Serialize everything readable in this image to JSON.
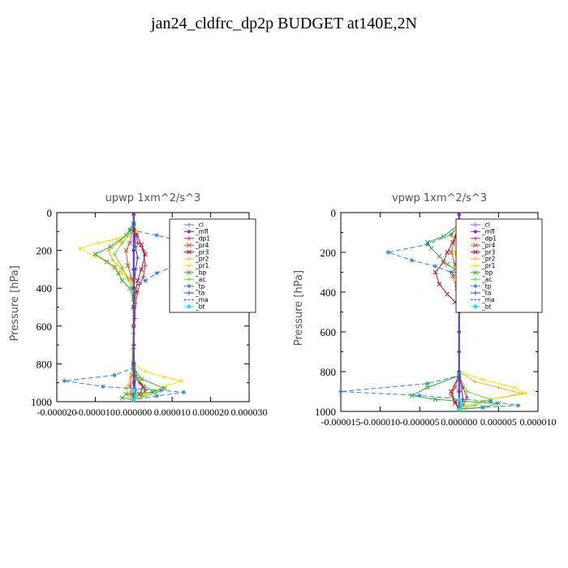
{
  "title": "jan24_cldfrc_dp2p  BUDGET at140E,2N",
  "chart_data": [
    {
      "type": "line",
      "title": "upwp   1xm^2/s^3",
      "ylabel": "Pressure [hPa]",
      "xlim": [
        -2e-05,
        3e-05
      ],
      "ylim": [
        1000,
        0
      ],
      "yticks": [
        0,
        200,
        400,
        600,
        800,
        1000
      ],
      "xticks": [
        "-0.000020",
        "-0.000010",
        "0.000000",
        "0.000010",
        "0.000020",
        "0.000030"
      ],
      "legend_position": "top-right",
      "series": [
        {
          "name": "_cl",
          "color": "#9a4fd6",
          "marker": "plus",
          "dash": "",
          "x": [
            0,
            0,
            0,
            0,
            0,
            0,
            0,
            0,
            0,
            0,
            0
          ],
          "y": [
            10,
            100,
            200,
            300,
            400,
            500,
            600,
            700,
            800,
            900,
            990
          ]
        },
        {
          "name": "_mfl",
          "color": "#8a2be2",
          "marker": "dot",
          "dash": "",
          "x": [
            0,
            0,
            0,
            0,
            0,
            0,
            0,
            0,
            0,
            0,
            0
          ],
          "y": [
            10,
            100,
            200,
            300,
            400,
            500,
            600,
            700,
            800,
            900,
            990
          ]
        },
        {
          "name": "_dp1",
          "color": "#d62050",
          "marker": "plus",
          "dash": "",
          "x": [
            0,
            5e-07,
            1e-06,
            2.5e-06,
            3e-06,
            2.5e-06,
            1.5e-06,
            1e-06,
            5e-07,
            3e-07,
            0,
            0,
            0,
            5e-07,
            1.5e-06,
            3e-06,
            2e-06,
            0
          ],
          "y": [
            60,
            110,
            160,
            200,
            280,
            340,
            380,
            420,
            480,
            560,
            640,
            720,
            800,
            860,
            900,
            940,
            970,
            990
          ]
        },
        {
          "name": "_pr4",
          "color": "#e0501a",
          "marker": "cross",
          "dash": "",
          "x": [
            0,
            -1e-06,
            -2e-06,
            -1.5e-06,
            -5e-07,
            0,
            0,
            -5e-07,
            -1e-06,
            -5e-07,
            0
          ],
          "y": [
            60,
            160,
            200,
            280,
            350,
            450,
            600,
            860,
            920,
            960,
            990
          ]
        },
        {
          "name": "_pr3",
          "color": "#b01040",
          "marker": "cross",
          "dash": "",
          "x": [
            0,
            8e-07,
            2e-06,
            3e-06,
            2e-06,
            1e-06,
            5e-07,
            0,
            0,
            1e-06,
            2.5e-06,
            1.5e-06,
            0
          ],
          "y": [
            60,
            120,
            170,
            220,
            300,
            360,
            420,
            500,
            800,
            880,
            920,
            960,
            990
          ]
        },
        {
          "name": "_pr2",
          "color": "#f0b030",
          "marker": "plus",
          "dash": "",
          "x": [
            0,
            -1e-06,
            -3.5e-06,
            -6.5e-06,
            -5.5e-06,
            -3e-06,
            -1e-06,
            0,
            0,
            -8e-07,
            -2e-06,
            -1e-06,
            0
          ],
          "y": [
            60,
            100,
            150,
            200,
            250,
            300,
            350,
            400,
            800,
            880,
            930,
            970,
            990
          ]
        },
        {
          "name": "_pr1",
          "color": "#ffd700",
          "marker": "plus",
          "dash": "",
          "x": [
            0,
            1e-06,
            -4.5e-06,
            -9e-06,
            -1.4e-05,
            -1e-05,
            -5e-06,
            -3e-06,
            0,
            0,
            3e-06,
            8e-06,
            1.25e-05,
            8e-06,
            3e-06,
            0
          ],
          "y": [
            60,
            100,
            140,
            160,
            190,
            230,
            280,
            320,
            380,
            800,
            840,
            870,
            890,
            920,
            960,
            990
          ]
        },
        {
          "name": "_bp",
          "color": "#33aa33",
          "marker": "cross",
          "dash": "",
          "x": [
            0,
            -2e-06,
            -6e-06,
            -1e-05,
            -7e-06,
            -5e-06,
            -4e-06,
            -3e-06,
            -1e-06,
            0,
            0,
            2e-06,
            8e-06,
            5e-06,
            -2e-06,
            -3e-06,
            0
          ],
          "y": [
            60,
            120,
            180,
            220,
            260,
            290,
            320,
            360,
            400,
            460,
            820,
            880,
            930,
            950,
            960,
            980,
            990
          ]
        },
        {
          "name": "_ac",
          "color": "#66dd22",
          "marker": "plus",
          "dash": "",
          "x": [
            0,
            -1e-06,
            -3e-06,
            -5e-06,
            -3e-06,
            -1.5e-06,
            0,
            0,
            1e-06,
            3e-06,
            6e-06,
            3e-06,
            0
          ],
          "y": [
            60,
            110,
            160,
            220,
            290,
            350,
            420,
            820,
            880,
            920,
            950,
            970,
            990
          ]
        },
        {
          "name": "_tp",
          "color": "#3388cc",
          "marker": "star",
          "dash": "6,3",
          "x": [
            0,
            -1e-06,
            6e-06,
            1.2e-05,
            2e-05,
            1.8e-05,
            1.1e-05,
            6e-06,
            3e-06,
            0,
            0,
            -5e-06,
            -1.8e-05,
            -8e-06,
            7e-06,
            1.3e-05,
            6e-06,
            0
          ],
          "y": [
            60,
            90,
            120,
            150,
            185,
            230,
            280,
            320,
            360,
            400,
            820,
            860,
            890,
            920,
            940,
            950,
            970,
            990
          ]
        },
        {
          "name": "_ta",
          "color": "#1f3fd0",
          "marker": "plus",
          "dash": "",
          "x": [
            0,
            5e-07,
            1e-06,
            5e-07,
            0,
            0,
            5e-07,
            0
          ],
          "y": [
            60,
            180,
            240,
            300,
            400,
            800,
            940,
            990
          ]
        },
        {
          "name": "_ma",
          "color": "#2255aa",
          "marker": "none",
          "dash": "4,2",
          "x": [
            0,
            0,
            0,
            0,
            0,
            0,
            0,
            0,
            0,
            0,
            0
          ],
          "y": [
            10,
            100,
            200,
            300,
            400,
            500,
            600,
            700,
            800,
            900,
            990
          ]
        },
        {
          "name": "_bt",
          "color": "#22ddee",
          "marker": "diamond",
          "dash": "",
          "x": [
            0,
            5e-07,
            0
          ],
          "y": [
            940,
            970,
            990
          ]
        }
      ]
    },
    {
      "type": "line",
      "title": "vpwp   1xm^2/s^3",
      "ylabel": "Pressure [hPa]",
      "xlim": [
        -1.5e-05,
        1e-05
      ],
      "ylim": [
        1000,
        0
      ],
      "yticks": [
        0,
        200,
        400,
        600,
        800,
        1000
      ],
      "xticks": [
        "-0.000015",
        "-0.000010",
        "-0.000005",
        "0.000000",
        "0.000005",
        "0.000010"
      ],
      "legend_position": "top-right",
      "series": [
        {
          "name": "_cl",
          "color": "#9a4fd6",
          "marker": "plus",
          "dash": "",
          "x": [
            0,
            0,
            0,
            0,
            0,
            0,
            0,
            0,
            0,
            0,
            0
          ],
          "y": [
            10,
            100,
            200,
            300,
            400,
            500,
            600,
            700,
            800,
            900,
            990
          ]
        },
        {
          "name": "_mfl",
          "color": "#8a2be2",
          "marker": "dot",
          "dash": "",
          "x": [
            0,
            0,
            0,
            0,
            0,
            0,
            0,
            0,
            0,
            0,
            0
          ],
          "y": [
            10,
            100,
            200,
            300,
            400,
            500,
            600,
            700,
            800,
            900,
            990
          ]
        },
        {
          "name": "_dp1",
          "color": "#d62050",
          "marker": "plus",
          "dash": "",
          "x": [
            0,
            5e-07,
            8e-07,
            4e-07,
            6e-07,
            2e-07,
            0,
            0,
            5e-07,
            1e-06,
            5e-07,
            0
          ],
          "y": [
            60,
            130,
            180,
            220,
            290,
            350,
            420,
            820,
            880,
            930,
            970,
            990
          ]
        },
        {
          "name": "_pr4",
          "color": "#e0501a",
          "marker": "cross",
          "dash": "",
          "x": [
            0,
            -5e-07,
            -1e-06,
            -5e-07,
            -8e-07,
            -3e-07,
            0,
            0,
            -5e-07,
            -1e-06,
            -5e-07,
            0
          ],
          "y": [
            60,
            130,
            200,
            260,
            320,
            380,
            440,
            820,
            880,
            920,
            960,
            990
          ]
        },
        {
          "name": "_pr3",
          "color": "#b01040",
          "marker": "cross",
          "dash": "",
          "x": [
            0,
            -8e-07,
            -1.5e-06,
            -2e-06,
            -3e-06,
            -2.5e-06,
            -1.5e-06,
            -5e-07,
            0,
            0,
            -1e-06,
            -5e-07,
            0
          ],
          "y": [
            60,
            150,
            200,
            250,
            300,
            360,
            410,
            450,
            480,
            820,
            900,
            950,
            990
          ]
        },
        {
          "name": "_pr2",
          "color": "#f0b030",
          "marker": "plus",
          "dash": "",
          "x": [
            0,
            5e-07,
            -5e-07,
            0,
            0,
            2e-06,
            5e-06,
            8e-06,
            4e-06,
            1e-06,
            0
          ],
          "y": [
            60,
            150,
            200,
            250,
            800,
            850,
            880,
            910,
            940,
            970,
            990
          ]
        },
        {
          "name": "_pr1",
          "color": "#ffd700",
          "marker": "plus",
          "dash": "",
          "x": [
            0,
            -1e-06,
            5e-07,
            -5e-07,
            0,
            0,
            3e-06,
            7e-06,
            8.5e-06,
            4e-06,
            1e-06,
            0
          ],
          "y": [
            60,
            120,
            160,
            210,
            260,
            800,
            840,
            880,
            910,
            940,
            970,
            990
          ]
        },
        {
          "name": "_bp",
          "color": "#33aa33",
          "marker": "cross",
          "dash": "",
          "x": [
            0,
            -2e-06,
            -4e-06,
            -3.5e-06,
            -2.5e-06,
            -1.5e-06,
            0,
            0,
            -4e-06,
            -6e-06,
            -3e-06,
            5e-06,
            3e-06,
            0
          ],
          "y": [
            60,
            120,
            150,
            180,
            220,
            260,
            300,
            820,
            880,
            920,
            940,
            960,
            980,
            990
          ]
        },
        {
          "name": "_ac",
          "color": "#66dd22",
          "marker": "plus",
          "dash": "",
          "x": [
            0,
            1e-06,
            2e-06,
            3e-06,
            3.5e-06,
            2.5e-06,
            1.5e-06,
            5e-07,
            0,
            0,
            1e-06,
            4e-06,
            2e-06,
            0
          ],
          "y": [
            60,
            150,
            200,
            250,
            300,
            350,
            400,
            440,
            480,
            820,
            900,
            940,
            970,
            990
          ]
        },
        {
          "name": "_tp",
          "color": "#3388cc",
          "marker": "star",
          "dash": "6,3",
          "x": [
            0,
            -1e-06,
            -4e-06,
            -9e-06,
            -6e-06,
            -3e-06,
            -1e-06,
            0,
            0,
            -4e-06,
            -1.5e-05,
            -5e-06,
            4e-06,
            7.5e-06,
            3e-06,
            0
          ],
          "y": [
            60,
            110,
            160,
            200,
            240,
            270,
            300,
            340,
            820,
            860,
            900,
            920,
            950,
            970,
            980,
            990
          ]
        },
        {
          "name": "_ta",
          "color": "#1f3fd0",
          "marker": "plus",
          "dash": "",
          "x": [
            0,
            3e-07,
            -3e-07,
            0,
            0,
            5e-07,
            0
          ],
          "y": [
            60,
            200,
            300,
            400,
            800,
            940,
            990
          ]
        },
        {
          "name": "_ma",
          "color": "#2255aa",
          "marker": "none",
          "dash": "4,2",
          "x": [
            0,
            0,
            0,
            0,
            0,
            0,
            0,
            0,
            0,
            0,
            0
          ],
          "y": [
            10,
            100,
            200,
            300,
            400,
            500,
            600,
            700,
            800,
            900,
            990
          ]
        },
        {
          "name": "_bt",
          "color": "#22ddee",
          "marker": "diamond",
          "dash": "",
          "x": [
            0,
            3e-07,
            0
          ],
          "y": [
            940,
            970,
            990
          ]
        }
      ]
    }
  ]
}
